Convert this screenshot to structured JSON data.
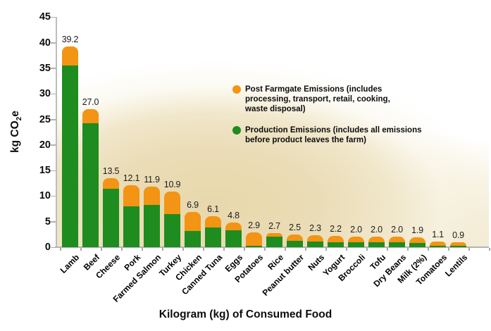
{
  "chart_data": {
    "type": "bar",
    "stacked": true,
    "title": "",
    "xlabel": "Kilogram (kg) of Consumed Food",
    "ylabel": "kg CO2e",
    "ylabel_parts": {
      "prefix": "kg CO",
      "sub": "2",
      "suffix": "e"
    },
    "ylim": [
      0,
      45
    ],
    "yticks": [
      45,
      40,
      35,
      30,
      25,
      20,
      15,
      10,
      5,
      0
    ],
    "grid": false,
    "legend_position": "inside-upper-right",
    "categories": [
      "Lamb",
      "Beef",
      "Cheese",
      "Pork",
      "Farmed Salmon",
      "Turkey",
      "Chicken",
      "Canned Tuna",
      "Eggs",
      "Potatoes",
      "Rice",
      "Peanut butter",
      "Nuts",
      "Yogurt",
      "Broccoli",
      "Tofu",
      "Dry Beans",
      "Milk (2%)",
      "Tomatoes",
      "Lentils"
    ],
    "totals_display": [
      "39.2",
      "27.0",
      "13.5",
      "12.1",
      "11.9",
      "10.9",
      "6.9",
      "6.1",
      "4.8",
      "2.9",
      "2.7",
      "2.5",
      "2.3",
      "2.2",
      "2.0",
      "2.0",
      "2.0",
      "1.9",
      "1.1",
      "0.9"
    ],
    "series": [
      {
        "name": "Production Emissions",
        "color": "#1e8c1e",
        "values": [
          35.6,
          24.2,
          11.5,
          8.0,
          8.3,
          6.5,
          3.2,
          3.8,
          3.3,
          0.3,
          2.1,
          1.3,
          1.1,
          1.0,
          1.0,
          1.0,
          0.9,
          0.8,
          0.3,
          0.3
        ]
      },
      {
        "name": "Post Farmgate Emissions",
        "color": "#f39414",
        "values": [
          3.6,
          2.8,
          2.0,
          4.1,
          3.6,
          4.4,
          3.7,
          2.3,
          1.5,
          2.6,
          0.6,
          1.2,
          1.2,
          1.2,
          1.0,
          1.0,
          1.1,
          1.1,
          0.8,
          0.6
        ]
      }
    ],
    "legend": {
      "items": [
        {
          "swatch_color": "#f39414",
          "lines": {
            "l0": "Post Farmgate Emissions (includes",
            "l1": "processing, transport, retail, cooking,",
            "l2": "waste disposal)"
          }
        },
        {
          "swatch_color": "#1e8c1e",
          "lines": {
            "l0": "Production Emissions (includes all emissions",
            "l1": "before product leaves the farm)"
          }
        }
      ]
    }
  }
}
